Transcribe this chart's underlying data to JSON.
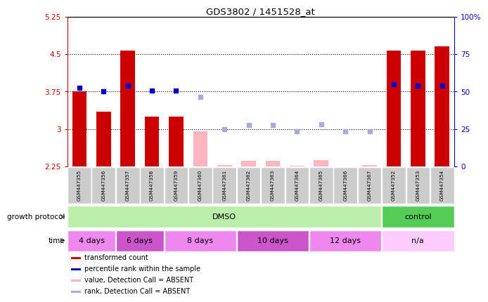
{
  "title": "GDS3802 / 1451528_at",
  "samples": [
    "GSM447355",
    "GSM447356",
    "GSM447357",
    "GSM447358",
    "GSM447359",
    "GSM447360",
    "GSM447361",
    "GSM447362",
    "GSM447363",
    "GSM447364",
    "GSM447365",
    "GSM447366",
    "GSM447367",
    "GSM447352",
    "GSM447353",
    "GSM447354"
  ],
  "red_bars": [
    3.75,
    3.35,
    4.57,
    3.25,
    3.25,
    null,
    null,
    null,
    null,
    null,
    null,
    null,
    null,
    4.57,
    4.57,
    4.65
  ],
  "blue_squares": [
    3.82,
    3.75,
    3.87,
    3.77,
    3.77,
    null,
    null,
    null,
    null,
    null,
    null,
    null,
    null,
    3.9,
    3.87,
    3.87
  ],
  "pink_bars": [
    null,
    null,
    null,
    null,
    null,
    2.95,
    2.28,
    2.36,
    2.36,
    2.27,
    2.38,
    2.22,
    2.28,
    null,
    null,
    null
  ],
  "light_blue_squares": [
    null,
    null,
    null,
    null,
    null,
    3.65,
    3.0,
    3.08,
    3.08,
    2.95,
    3.1,
    2.95,
    2.95,
    null,
    null,
    null
  ],
  "ylim_left": [
    2.25,
    5.25
  ],
  "ylim_right": [
    0,
    100
  ],
  "yticks_left": [
    2.25,
    3.0,
    3.75,
    4.5,
    5.25
  ],
  "yticks_right": [
    0,
    25,
    50,
    75,
    100
  ],
  "ytick_labels_left": [
    "2.25",
    "3",
    "3.75",
    "4.5",
    "5.25"
  ],
  "ytick_labels_right": [
    "0",
    "25",
    "50",
    "75",
    "100%"
  ],
  "hlines": [
    3.0,
    3.75,
    4.5
  ],
  "bar_width": 0.6,
  "red_color": "#CC0000",
  "blue_color": "#0000CC",
  "pink_color": "#FFB6C1",
  "light_blue_color": "#AAAADD",
  "bg_color": "#FFFFFF",
  "growth_protocol_label": "growth protocol",
  "time_label": "time",
  "time_groups": [
    {
      "label": "4 days",
      "start": 0,
      "end": 2,
      "color": "#EE88EE"
    },
    {
      "label": "6 days",
      "start": 2,
      "end": 4,
      "color": "#CC55CC"
    },
    {
      "label": "8 days",
      "start": 4,
      "end": 7,
      "color": "#EE88EE"
    },
    {
      "label": "10 days",
      "start": 7,
      "end": 10,
      "color": "#CC55CC"
    },
    {
      "label": "12 days",
      "start": 10,
      "end": 13,
      "color": "#EE88EE"
    },
    {
      "label": "n/a",
      "start": 13,
      "end": 16,
      "color": "#FFCCFF"
    }
  ],
  "growth_groups": [
    {
      "label": "DMSO",
      "start": 0,
      "end": 13,
      "color": "#BBEEAA"
    },
    {
      "label": "control",
      "start": 13,
      "end": 16,
      "color": "#55CC55"
    }
  ],
  "legend_items": [
    {
      "label": "transformed count",
      "color": "#CC0000"
    },
    {
      "label": "percentile rank within the sample",
      "color": "#0000CC"
    },
    {
      "label": "value, Detection Call = ABSENT",
      "color": "#FFB6C1"
    },
    {
      "label": "rank, Detection Call = ABSENT",
      "color": "#AAAADD"
    }
  ]
}
